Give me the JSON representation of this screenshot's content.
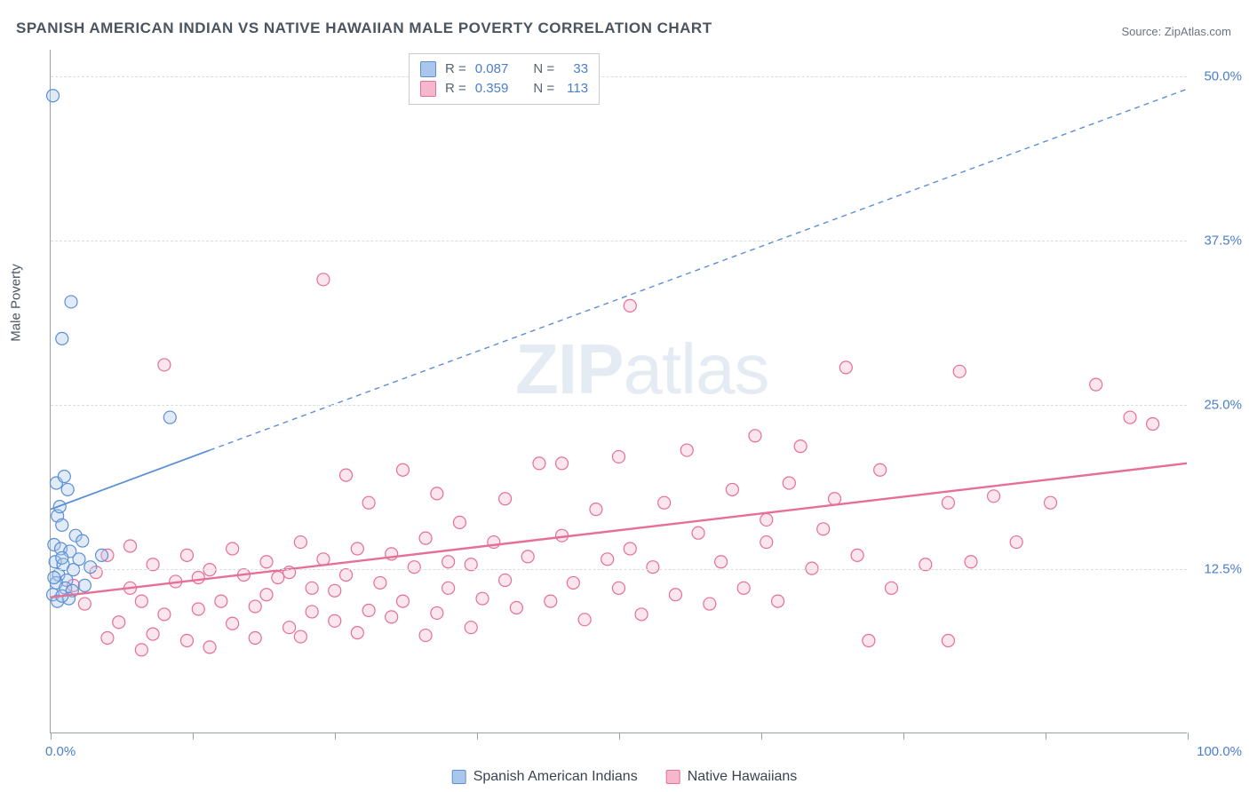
{
  "title": "SPANISH AMERICAN INDIAN VS NATIVE HAWAIIAN MALE POVERTY CORRELATION CHART",
  "source_label": "Source: ",
  "source_name": "ZipAtlas.com",
  "ylabel": "Male Poverty",
  "watermark_zip": "ZIP",
  "watermark_atlas": "atlas",
  "chart": {
    "type": "scatter",
    "xlim": [
      0,
      100
    ],
    "ylim": [
      0,
      52
    ],
    "x_ticks": [
      0,
      12.5,
      25,
      37.5,
      50,
      62.5,
      75,
      87.5,
      100
    ],
    "x_tick_labels": {
      "0": "0.0%",
      "100": "100.0%"
    },
    "y_ticks": [
      12.5,
      25.0,
      37.5,
      50.0
    ],
    "y_tick_labels": [
      "12.5%",
      "25.0%",
      "37.5%",
      "50.0%"
    ],
    "background_color": "#ffffff",
    "grid_color": "#d9dde1",
    "axis_color": "#98a0a8",
    "marker_radius": 7,
    "marker_fill_opacity": 0.35,
    "marker_stroke_width": 1.2,
    "series": [
      {
        "id": "spanish_american_indians",
        "label": "Spanish American Indians",
        "color_stroke": "#5b8fd6",
        "color_fill": "#a9c7ec",
        "r": 0.087,
        "n": 33,
        "trend": {
          "x0": 0,
          "y0": 17.0,
          "x_solid_end": 14,
          "y_solid_end": 21.5,
          "x1": 100,
          "y1": 49.0,
          "dash": "6,5",
          "width": 1.8
        },
        "points": [
          [
            0.2,
            48.5
          ],
          [
            1.8,
            32.8
          ],
          [
            1.0,
            30.0
          ],
          [
            0.5,
            19.0
          ],
          [
            1.2,
            19.5
          ],
          [
            1.5,
            18.5
          ],
          [
            0.6,
            16.5
          ],
          [
            1.0,
            15.8
          ],
          [
            0.8,
            17.2
          ],
          [
            2.2,
            15.0
          ],
          [
            0.3,
            14.3
          ],
          [
            0.9,
            14.0
          ],
          [
            1.7,
            13.8
          ],
          [
            2.8,
            14.6
          ],
          [
            0.4,
            13.0
          ],
          [
            1.1,
            12.8
          ],
          [
            2.0,
            12.4
          ],
          [
            0.7,
            12.0
          ],
          [
            1.4,
            11.6
          ],
          [
            2.5,
            13.2
          ],
          [
            3.5,
            12.6
          ],
          [
            0.5,
            11.4
          ],
          [
            1.3,
            11.0
          ],
          [
            0.2,
            10.5
          ],
          [
            1.9,
            10.8
          ],
          [
            0.6,
            10.0
          ],
          [
            1.6,
            10.2
          ],
          [
            1.0,
            10.4
          ],
          [
            3.0,
            11.2
          ],
          [
            0.3,
            11.8
          ],
          [
            1.0,
            13.3
          ],
          [
            10.5,
            24.0
          ],
          [
            4.5,
            13.5
          ]
        ]
      },
      {
        "id": "native_hawaiians",
        "label": "Native Hawaiians",
        "color_stroke": "#e56f95",
        "color_fill": "#f6b6cc",
        "r": 0.359,
        "n": 113,
        "trend": {
          "x0": 0,
          "y0": 10.3,
          "x_solid_end": 100,
          "y_solid_end": 20.5,
          "x1": 100,
          "y1": 20.5,
          "dash": null,
          "width": 2.4
        },
        "points": [
          [
            2,
            11.2
          ],
          [
            3,
            9.8
          ],
          [
            4,
            12.2
          ],
          [
            5,
            7.2
          ],
          [
            5,
            13.5
          ],
          [
            6,
            8.4
          ],
          [
            7,
            11.0
          ],
          [
            7,
            14.2
          ],
          [
            8,
            6.3
          ],
          [
            8,
            10.0
          ],
          [
            9,
            12.8
          ],
          [
            9,
            7.5
          ],
          [
            10,
            28.0
          ],
          [
            10,
            9.0
          ],
          [
            11,
            11.5
          ],
          [
            12,
            13.5
          ],
          [
            12,
            7.0
          ],
          [
            13,
            9.4
          ],
          [
            13,
            11.8
          ],
          [
            14,
            6.5
          ],
          [
            14,
            12.4
          ],
          [
            15,
            10.0
          ],
          [
            16,
            8.3
          ],
          [
            16,
            14.0
          ],
          [
            17,
            12.0
          ],
          [
            18,
            9.6
          ],
          [
            18,
            7.2
          ],
          [
            19,
            13.0
          ],
          [
            19,
            10.5
          ],
          [
            20,
            11.8
          ],
          [
            21,
            8.0
          ],
          [
            21,
            12.2
          ],
          [
            22,
            7.3
          ],
          [
            22,
            14.5
          ],
          [
            23,
            9.2
          ],
          [
            23,
            11.0
          ],
          [
            24,
            34.5
          ],
          [
            24,
            13.2
          ],
          [
            25,
            10.8
          ],
          [
            25,
            8.5
          ],
          [
            26,
            19.6
          ],
          [
            26,
            12.0
          ],
          [
            27,
            14.0
          ],
          [
            27,
            7.6
          ],
          [
            28,
            9.3
          ],
          [
            28,
            17.5
          ],
          [
            29,
            11.4
          ],
          [
            30,
            13.6
          ],
          [
            30,
            8.8
          ],
          [
            31,
            20.0
          ],
          [
            31,
            10.0
          ],
          [
            32,
            12.6
          ],
          [
            33,
            14.8
          ],
          [
            33,
            7.4
          ],
          [
            34,
            9.1
          ],
          [
            34,
            18.2
          ],
          [
            35,
            11.0
          ],
          [
            35,
            13.0
          ],
          [
            36,
            16.0
          ],
          [
            37,
            8.0
          ],
          [
            37,
            12.8
          ],
          [
            38,
            10.2
          ],
          [
            39,
            14.5
          ],
          [
            40,
            11.6
          ],
          [
            40,
            17.8
          ],
          [
            41,
            9.5
          ],
          [
            42,
            13.4
          ],
          [
            43,
            20.5
          ],
          [
            44,
            10.0
          ],
          [
            45,
            15.0
          ],
          [
            46,
            11.4
          ],
          [
            47,
            8.6
          ],
          [
            48,
            17.0
          ],
          [
            49,
            13.2
          ],
          [
            50,
            21.0
          ],
          [
            50,
            11.0
          ],
          [
            51,
            32.5
          ],
          [
            51,
            14.0
          ],
          [
            52,
            9.0
          ],
          [
            53,
            12.6
          ],
          [
            54,
            17.5
          ],
          [
            55,
            10.5
          ],
          [
            56,
            21.5
          ],
          [
            57,
            15.2
          ],
          [
            58,
            9.8
          ],
          [
            59,
            13.0
          ],
          [
            60,
            18.5
          ],
          [
            61,
            11.0
          ],
          [
            62,
            22.6
          ],
          [
            63,
            14.5
          ],
          [
            63,
            16.2
          ],
          [
            64,
            10.0
          ],
          [
            65,
            19.0
          ],
          [
            66,
            21.8
          ],
          [
            67,
            12.5
          ],
          [
            68,
            15.5
          ],
          [
            69,
            17.8
          ],
          [
            70,
            27.8
          ],
          [
            71,
            13.5
          ],
          [
            72,
            7.0
          ],
          [
            73,
            20.0
          ],
          [
            74,
            11.0
          ],
          [
            77,
            12.8
          ],
          [
            79,
            17.5
          ],
          [
            80,
            27.5
          ],
          [
            81,
            13.0
          ],
          [
            83,
            18.0
          ],
          [
            85,
            14.5
          ],
          [
            88,
            17.5
          ],
          [
            79,
            7.0
          ],
          [
            92,
            26.5
          ],
          [
            95,
            24.0
          ],
          [
            97,
            23.5
          ],
          [
            45,
            20.5
          ]
        ]
      }
    ]
  },
  "legend_top": {
    "r_label": "R =",
    "n_label": "N ="
  }
}
